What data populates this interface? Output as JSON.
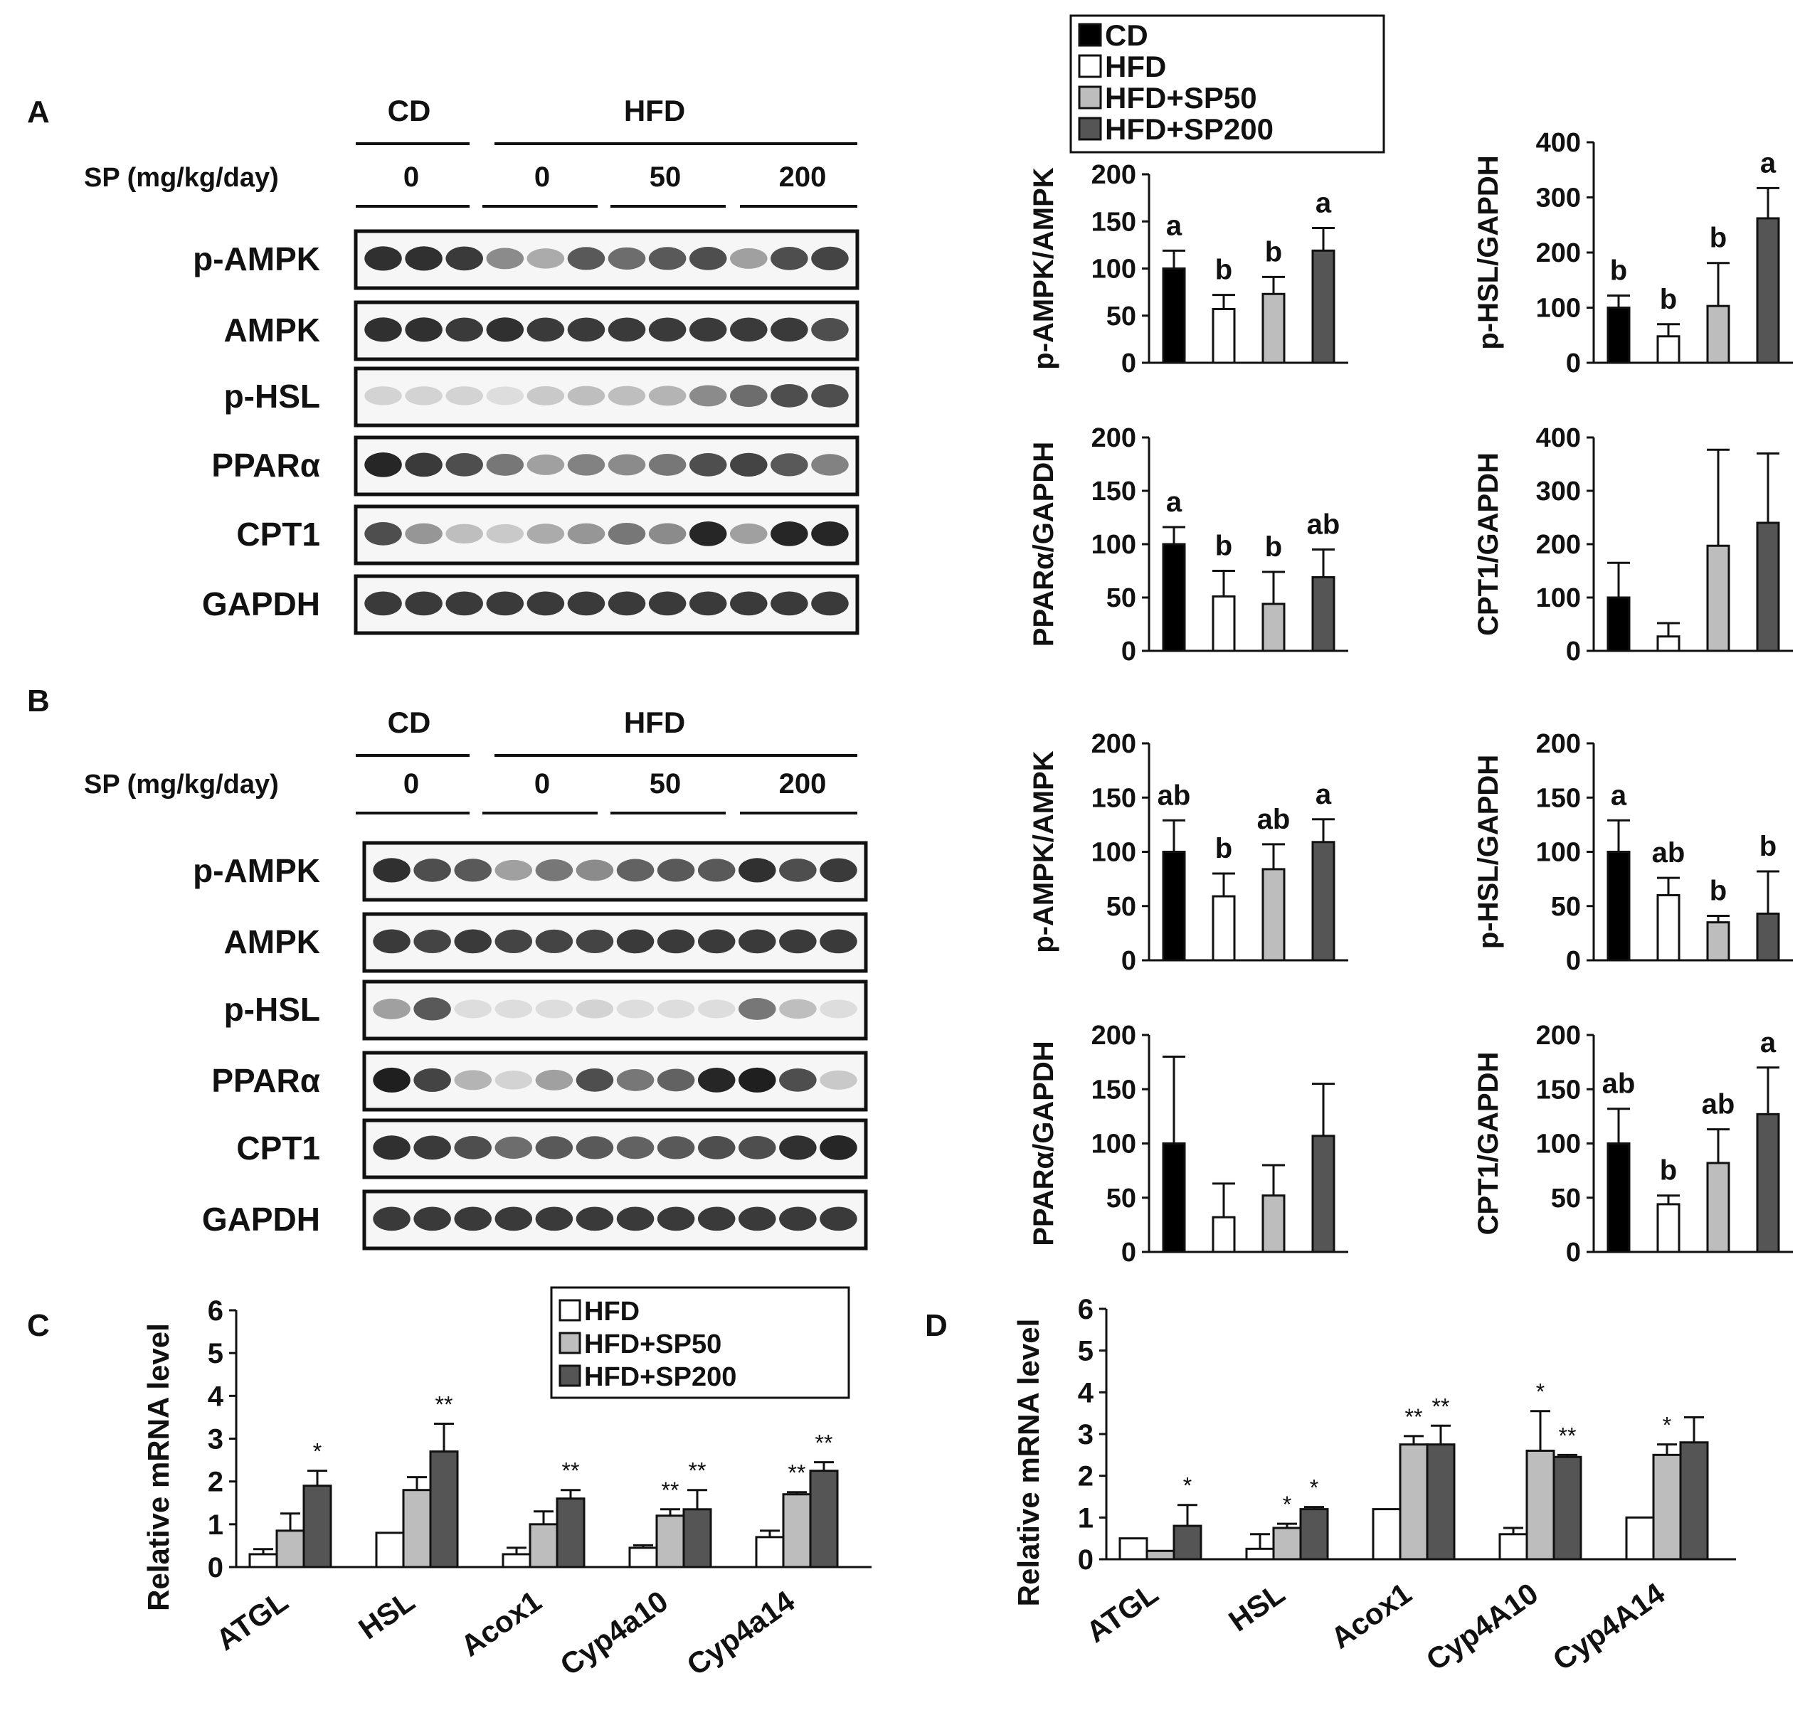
{
  "panel_letters": [
    "A",
    "B",
    "C",
    "D"
  ],
  "legend_top": {
    "entries": [
      {
        "label": "CD",
        "color": "#000000"
      },
      {
        "label": "HFD",
        "color": "#ffffff"
      },
      {
        "label": "HFD+SP50",
        "color": "#bdbdbd"
      },
      {
        "label": "HFD+SP200",
        "color": "#555555"
      }
    ]
  },
  "legend_c": {
    "entries": [
      {
        "label": "HFD",
        "color": "#ffffff"
      },
      {
        "label": "HFD+SP50",
        "color": "#bdbdbd"
      },
      {
        "label": "HFD+SP200",
        "color": "#555555"
      }
    ]
  },
  "blots": [
    {
      "header_cd": "CD",
      "header_hfd": "HFD",
      "sp_label": "SP (mg/kg/day)",
      "doses": [
        "0",
        "0",
        "50",
        "200"
      ],
      "rows": [
        "p-AMPK",
        "AMPK",
        "p-HSL",
        "PPARα",
        "CPT1",
        "GAPDH"
      ],
      "intensity": [
        [
          0.9,
          0.9,
          0.85,
          0.45,
          0.3,
          0.7,
          0.6,
          0.7,
          0.75,
          0.35,
          0.75,
          0.8
        ],
        [
          0.9,
          0.9,
          0.85,
          0.9,
          0.85,
          0.85,
          0.85,
          0.85,
          0.85,
          0.85,
          0.85,
          0.75
        ],
        [
          0.1,
          0.1,
          0.1,
          0.05,
          0.15,
          0.2,
          0.2,
          0.25,
          0.45,
          0.6,
          0.75,
          0.75
        ],
        [
          0.95,
          0.85,
          0.75,
          0.55,
          0.35,
          0.5,
          0.45,
          0.55,
          0.75,
          0.8,
          0.7,
          0.5
        ],
        [
          0.75,
          0.4,
          0.2,
          0.15,
          0.3,
          0.4,
          0.55,
          0.45,
          0.95,
          0.35,
          0.95,
          0.95
        ],
        [
          0.85,
          0.85,
          0.85,
          0.85,
          0.85,
          0.85,
          0.85,
          0.85,
          0.85,
          0.85,
          0.85,
          0.85
        ]
      ]
    },
    {
      "header_cd": "CD",
      "header_hfd": "HFD",
      "sp_label": "SP (mg/kg/day)",
      "doses": [
        "0",
        "0",
        "50",
        "200"
      ],
      "rows": [
        "p-AMPK",
        "AMPK",
        "p-HSL",
        "PPARα",
        "CPT1",
        "GAPDH"
      ],
      "intensity": [
        [
          0.9,
          0.75,
          0.7,
          0.35,
          0.55,
          0.45,
          0.65,
          0.7,
          0.7,
          0.9,
          0.75,
          0.85
        ],
        [
          0.85,
          0.8,
          0.85,
          0.8,
          0.8,
          0.8,
          0.85,
          0.85,
          0.85,
          0.85,
          0.85,
          0.85
        ],
        [
          0.35,
          0.7,
          0.05,
          0.05,
          0.05,
          0.1,
          0.05,
          0.05,
          0.05,
          0.55,
          0.2,
          0.05
        ],
        [
          0.98,
          0.8,
          0.25,
          0.1,
          0.35,
          0.75,
          0.55,
          0.65,
          0.95,
          0.98,
          0.75,
          0.15
        ],
        [
          0.9,
          0.85,
          0.75,
          0.6,
          0.7,
          0.7,
          0.65,
          0.7,
          0.75,
          0.75,
          0.9,
          0.95
        ],
        [
          0.85,
          0.85,
          0.85,
          0.85,
          0.85,
          0.85,
          0.85,
          0.85,
          0.85,
          0.85,
          0.85,
          0.85
        ]
      ]
    }
  ],
  "chart_data": [
    {
      "type": "bar",
      "panel": "A",
      "ylabel": "p-AMPK/AMPK",
      "ylim": [
        0,
        200
      ],
      "yticks": [
        0,
        50,
        100,
        150,
        200
      ],
      "categories": [
        "CD",
        "HFD",
        "HFD+SP50",
        "HFD+SP200"
      ],
      "values": [
        100,
        57,
        73,
        119
      ],
      "errors": [
        19,
        15,
        18,
        24
      ],
      "letters": [
        "a",
        "b",
        "b",
        "a"
      ]
    },
    {
      "type": "bar",
      "panel": "A",
      "ylabel": "p-HSL/GAPDH",
      "ylim": [
        0,
        400
      ],
      "yticks": [
        0,
        100,
        200,
        300,
        400
      ],
      "categories": [
        "CD",
        "HFD",
        "HFD+SP50",
        "HFD+SP200"
      ],
      "values": [
        100,
        48,
        103,
        262
      ],
      "errors": [
        22,
        22,
        78,
        55
      ],
      "letters": [
        "b",
        "b",
        "b",
        "a"
      ]
    },
    {
      "type": "bar",
      "panel": "A",
      "ylabel": "PPARα/GAPDH",
      "ylim": [
        0,
        200
      ],
      "yticks": [
        0,
        50,
        100,
        150,
        200
      ],
      "categories": [
        "CD",
        "HFD",
        "HFD+SP50",
        "HFD+SP200"
      ],
      "values": [
        100,
        51,
        44,
        69
      ],
      "errors": [
        16,
        24,
        30,
        26
      ],
      "letters": [
        "a",
        "b",
        "b",
        "ab"
      ]
    },
    {
      "type": "bar",
      "panel": "A",
      "ylabel": "CPT1/GAPDH",
      "ylim": [
        0,
        400
      ],
      "yticks": [
        0,
        100,
        200,
        300,
        400
      ],
      "categories": [
        "CD",
        "HFD",
        "HFD+SP50",
        "HFD+SP200"
      ],
      "values": [
        100,
        27,
        197,
        240
      ],
      "errors": [
        65,
        25,
        180,
        130
      ],
      "letters": [
        "",
        "",
        "",
        ""
      ]
    },
    {
      "type": "bar",
      "panel": "B",
      "ylabel": "p-AMPK/AMPK",
      "ylim": [
        0,
        200
      ],
      "yticks": [
        0,
        50,
        100,
        150,
        200
      ],
      "categories": [
        "CD",
        "HFD",
        "HFD+SP50",
        "HFD+SP200"
      ],
      "values": [
        100,
        59,
        84,
        109
      ],
      "errors": [
        29,
        21,
        23,
        21
      ],
      "letters": [
        "ab",
        "b",
        "ab",
        "a"
      ]
    },
    {
      "type": "bar",
      "panel": "B",
      "ylabel": "p-HSL/GAPDH",
      "ylim": [
        0,
        200
      ],
      "yticks": [
        0,
        50,
        100,
        150,
        200
      ],
      "categories": [
        "CD",
        "HFD",
        "HFD+SP50",
        "HFD+SP200"
      ],
      "values": [
        100,
        60,
        35,
        43
      ],
      "errors": [
        29,
        16,
        6,
        39
      ],
      "letters": [
        "a",
        "ab",
        "b",
        "b"
      ]
    },
    {
      "type": "bar",
      "panel": "B",
      "ylabel": "PPARα/GAPDH",
      "ylim": [
        0,
        200
      ],
      "yticks": [
        0,
        50,
        100,
        150,
        200
      ],
      "categories": [
        "CD",
        "HFD",
        "HFD+SP50",
        "HFD+SP200"
      ],
      "values": [
        100,
        32,
        52,
        107
      ],
      "errors": [
        80,
        31,
        28,
        48
      ],
      "letters": [
        "",
        "",
        "",
        ""
      ]
    },
    {
      "type": "bar",
      "panel": "B",
      "ylabel": "CPT1/GAPDH",
      "ylim": [
        0,
        200
      ],
      "yticks": [
        0,
        50,
        100,
        150,
        200
      ],
      "categories": [
        "CD",
        "HFD",
        "HFD+SP50",
        "HFD+SP200"
      ],
      "values": [
        100,
        44,
        82,
        127
      ],
      "errors": [
        32,
        8,
        31,
        43
      ],
      "letters": [
        "ab",
        "b",
        "ab",
        "a"
      ]
    },
    {
      "type": "bar",
      "panel": "C",
      "ylabel": "Relative mRNA level",
      "ylim": [
        0,
        6
      ],
      "yticks": [
        0,
        1,
        2,
        3,
        4,
        5,
        6
      ],
      "categories": [
        "ATGL",
        "HSL",
        "Acox1",
        "Cyp4a10",
        "Cyp4a14"
      ],
      "series": [
        {
          "name": "HFD",
          "values": [
            0.3,
            0.8,
            0.3,
            0.45,
            0.7
          ],
          "errors": [
            0.12,
            0,
            0.15,
            0.06,
            0.15
          ],
          "stars": [
            "",
            "",
            "",
            "",
            ""
          ]
        },
        {
          "name": "HFD+SP50",
          "values": [
            0.85,
            1.8,
            1.0,
            1.2,
            1.7
          ],
          "errors": [
            0.4,
            0.3,
            0.3,
            0.15,
            0.05
          ],
          "stars": [
            "",
            "",
            "",
            "**",
            "**"
          ]
        },
        {
          "name": "HFD+SP200",
          "values": [
            1.9,
            2.7,
            1.6,
            1.35,
            2.25
          ],
          "errors": [
            0.35,
            0.65,
            0.2,
            0.45,
            0.2
          ],
          "stars": [
            "*",
            "**",
            "**",
            "**",
            "**"
          ]
        }
      ]
    },
    {
      "type": "bar",
      "panel": "D",
      "ylabel": "Relative mRNA level",
      "ylim": [
        0,
        6
      ],
      "yticks": [
        0,
        1,
        2,
        3,
        4,
        5,
        6
      ],
      "categories": [
        "ATGL",
        "HSL",
        "Acox1",
        "Cyp4A10",
        "Cyp4A14"
      ],
      "series": [
        {
          "name": "HFD",
          "values": [
            0.5,
            0.25,
            1.2,
            0.6,
            1.0
          ],
          "errors": [
            0,
            0.35,
            0,
            0.15,
            0
          ],
          "stars": [
            "",
            "",
            "",
            "",
            ""
          ]
        },
        {
          "name": "HFD+SP50",
          "values": [
            0.2,
            0.75,
            2.75,
            2.6,
            2.5
          ],
          "errors": [
            0,
            0.1,
            0.2,
            0.95,
            0.25
          ],
          "stars": [
            "",
            "*",
            "**",
            "*",
            "*"
          ]
        },
        {
          "name": "HFD+SP200",
          "values": [
            0.8,
            1.2,
            2.75,
            2.45,
            2.8
          ],
          "errors": [
            0.5,
            0.05,
            0.45,
            0.05,
            0.6
          ],
          "stars": [
            "*",
            "*",
            "**",
            "**",
            ""
          ]
        }
      ]
    }
  ]
}
